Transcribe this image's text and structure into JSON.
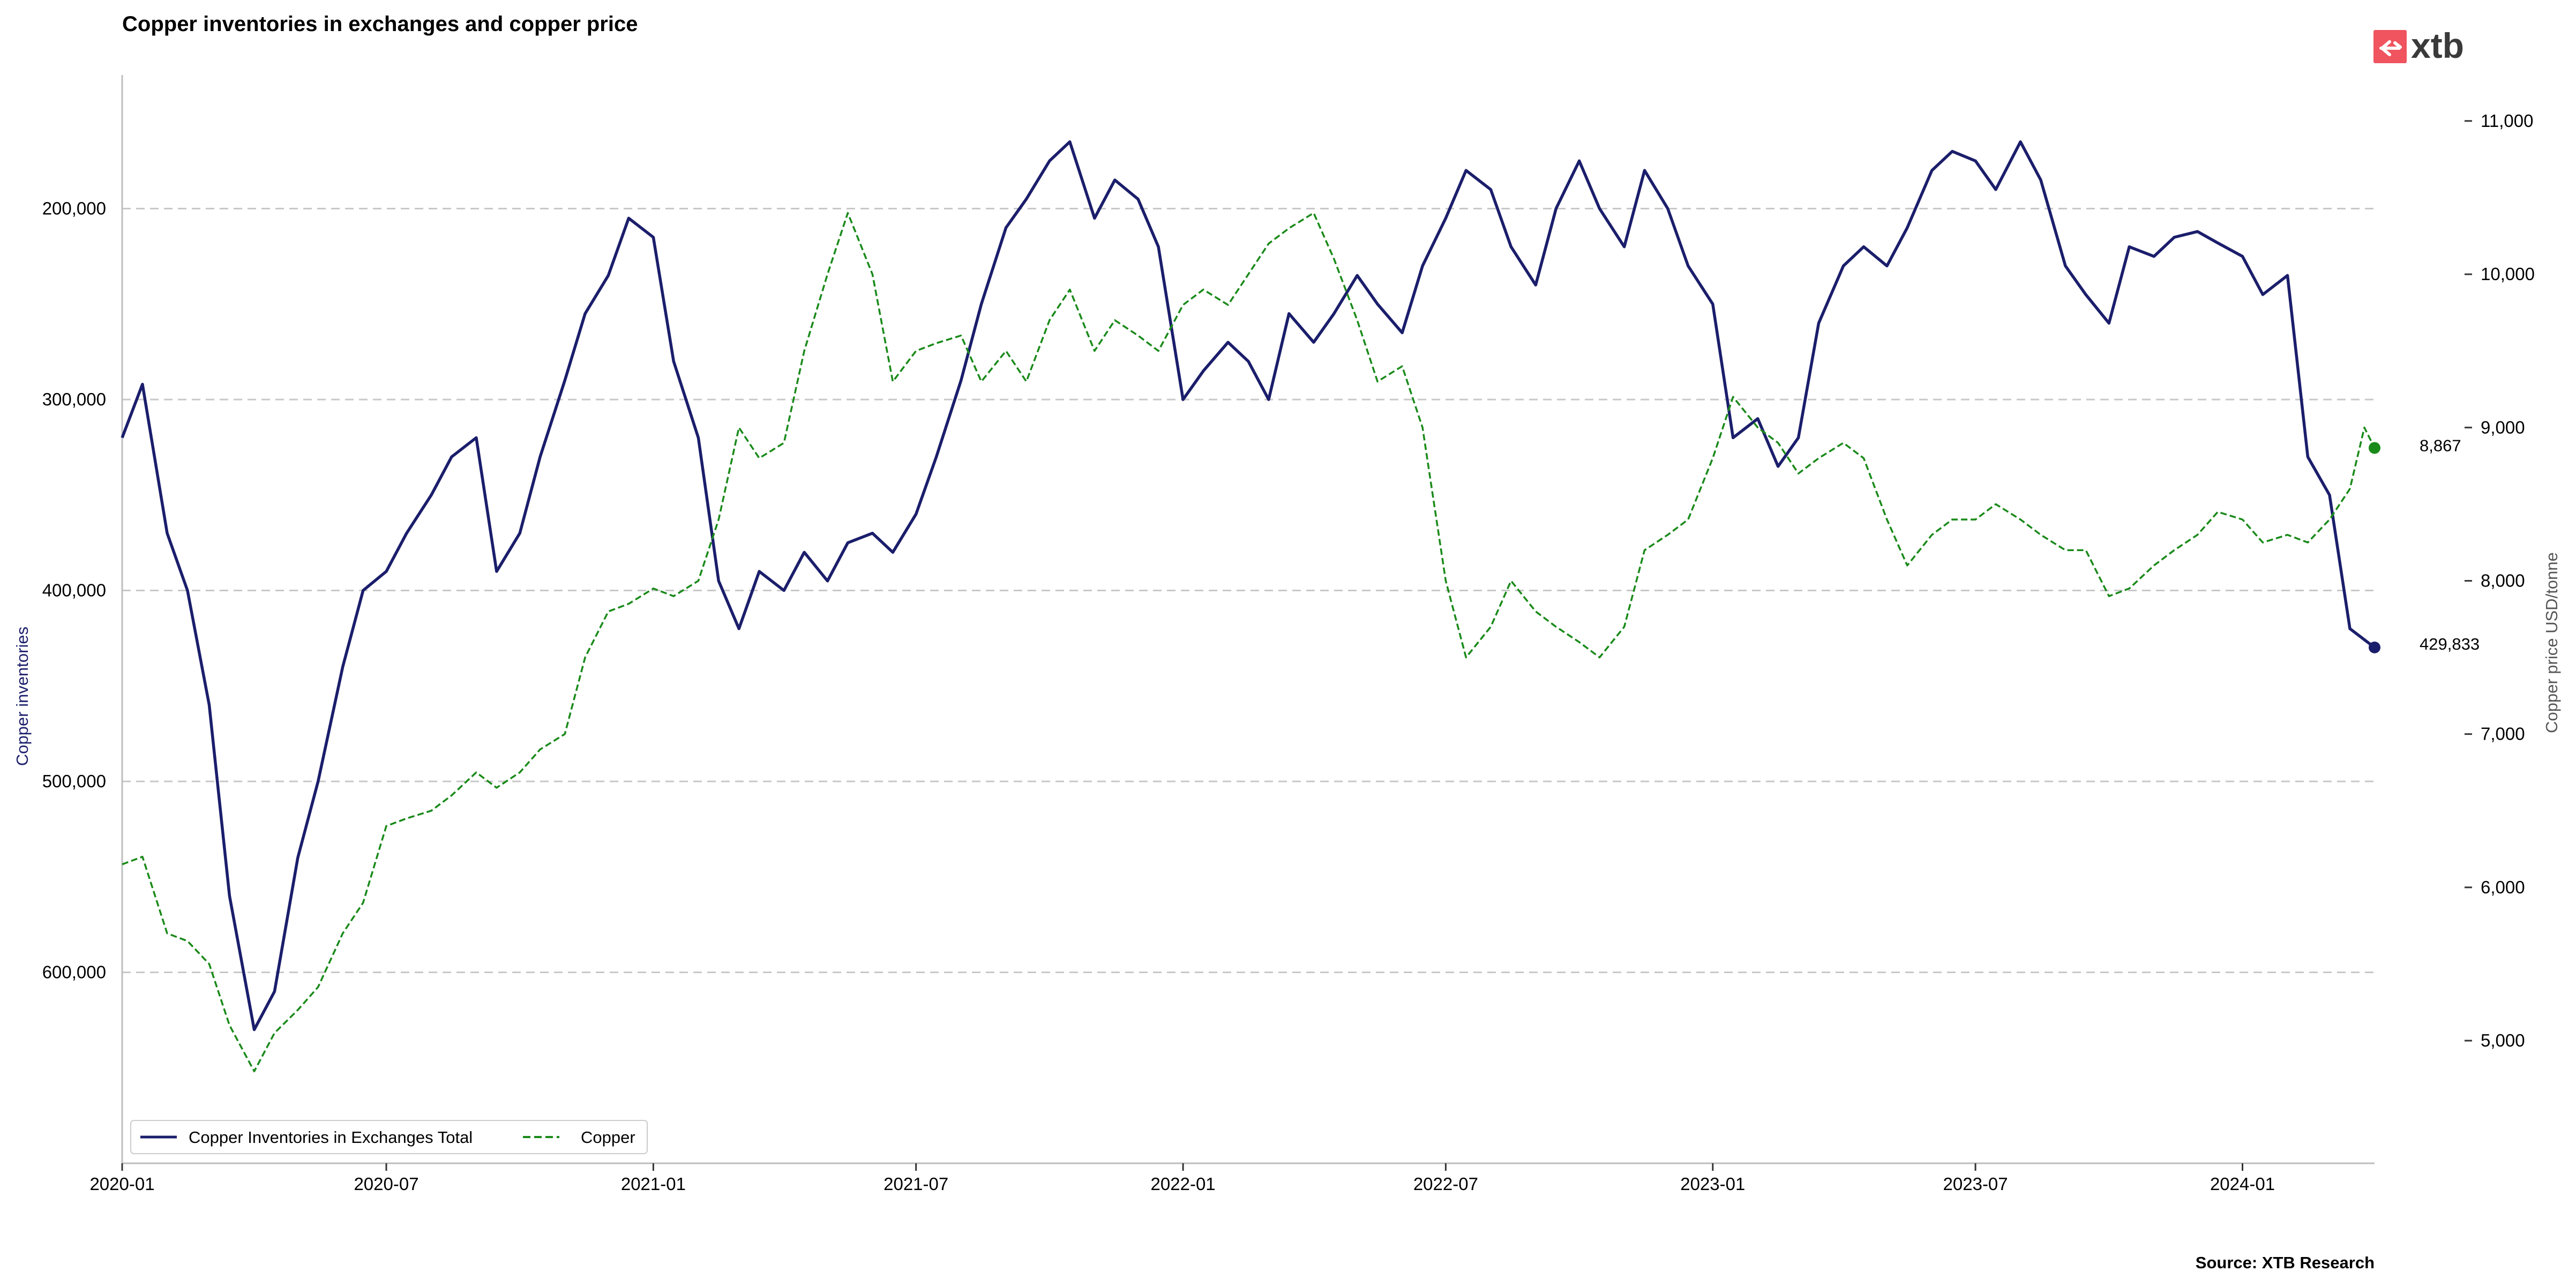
{
  "chart_data": {
    "type": "line",
    "title": "Copper inventories in exchanges and copper price",
    "source": "Source: XTB Research",
    "logo_text": "xtb",
    "grid": "horizontal dashed",
    "legend_position": "bottom-left",
    "x_axis": {
      "range": [
        "2020-01",
        "2024-04"
      ],
      "tick_labels": [
        "2020-01",
        "2020-07",
        "2021-01",
        "2021-07",
        "2022-01",
        "2022-07",
        "2023-01",
        "2023-07",
        "2024-01"
      ]
    },
    "left_axis": {
      "label": "Copper inventories",
      "inverted": true,
      "range": [
        130000,
        700000
      ],
      "ticks": [
        200000,
        300000,
        400000,
        500000,
        600000
      ],
      "tick_labels": [
        "200,000",
        "300,000",
        "400,000",
        "500,000",
        "600,000"
      ],
      "color": "#1b1e6b"
    },
    "right_axis": {
      "label": "Copper price USD/tonne",
      "range": [
        4200,
        11300
      ],
      "ticks": [
        5000,
        6000,
        7000,
        8000,
        9000,
        10000,
        11000
      ],
      "tick_labels": [
        "5,000",
        "6,000",
        "7,000",
        "8,000",
        "9,000",
        "10,000",
        "11,000"
      ],
      "color": "#555555"
    },
    "series": [
      {
        "name": "Copper Inventories in Exchanges Total",
        "axis": "left",
        "color": "#1b1e6b",
        "style": "solid",
        "last_value_label": "429,833",
        "points": [
          [
            "2020-01-01",
            320000
          ],
          [
            "2020-01-15",
            292000
          ],
          [
            "2020-02-01",
            370000
          ],
          [
            "2020-02-15",
            400000
          ],
          [
            "2020-03-01",
            460000
          ],
          [
            "2020-03-15",
            560000
          ],
          [
            "2020-04-01",
            630000
          ],
          [
            "2020-04-15",
            610000
          ],
          [
            "2020-05-01",
            540000
          ],
          [
            "2020-05-15",
            500000
          ],
          [
            "2020-06-01",
            440000
          ],
          [
            "2020-06-15",
            400000
          ],
          [
            "2020-07-01",
            390000
          ],
          [
            "2020-07-15",
            370000
          ],
          [
            "2020-08-01",
            350000
          ],
          [
            "2020-08-15",
            330000
          ],
          [
            "2020-09-01",
            320000
          ],
          [
            "2020-09-15",
            390000
          ],
          [
            "2020-10-01",
            370000
          ],
          [
            "2020-10-15",
            330000
          ],
          [
            "2020-11-01",
            290000
          ],
          [
            "2020-11-15",
            255000
          ],
          [
            "2020-12-01",
            235000
          ],
          [
            "2020-12-15",
            205000
          ],
          [
            "2021-01-01",
            215000
          ],
          [
            "2021-01-15",
            280000
          ],
          [
            "2021-02-01",
            320000
          ],
          [
            "2021-02-15",
            395000
          ],
          [
            "2021-03-01",
            420000
          ],
          [
            "2021-03-15",
            390000
          ],
          [
            "2021-04-01",
            400000
          ],
          [
            "2021-04-15",
            380000
          ],
          [
            "2021-05-01",
            395000
          ],
          [
            "2021-05-15",
            375000
          ],
          [
            "2021-06-01",
            370000
          ],
          [
            "2021-06-15",
            380000
          ],
          [
            "2021-07-01",
            360000
          ],
          [
            "2021-07-15",
            330000
          ],
          [
            "2021-08-01",
            290000
          ],
          [
            "2021-08-15",
            250000
          ],
          [
            "2021-09-01",
            210000
          ],
          [
            "2021-09-15",
            195000
          ],
          [
            "2021-10-01",
            175000
          ],
          [
            "2021-10-15",
            165000
          ],
          [
            "2021-11-01",
            205000
          ],
          [
            "2021-11-15",
            185000
          ],
          [
            "2021-12-01",
            195000
          ],
          [
            "2021-12-15",
            220000
          ],
          [
            "2022-01-01",
            300000
          ],
          [
            "2022-01-15",
            285000
          ],
          [
            "2022-02-01",
            270000
          ],
          [
            "2022-02-15",
            280000
          ],
          [
            "2022-03-01",
            300000
          ],
          [
            "2022-03-15",
            255000
          ],
          [
            "2022-04-01",
            270000
          ],
          [
            "2022-04-15",
            255000
          ],
          [
            "2022-05-01",
            235000
          ],
          [
            "2022-05-15",
            250000
          ],
          [
            "2022-06-01",
            265000
          ],
          [
            "2022-06-15",
            230000
          ],
          [
            "2022-07-01",
            205000
          ],
          [
            "2022-07-15",
            180000
          ],
          [
            "2022-08-01",
            190000
          ],
          [
            "2022-08-15",
            220000
          ],
          [
            "2022-09-01",
            240000
          ],
          [
            "2022-09-15",
            200000
          ],
          [
            "2022-10-01",
            175000
          ],
          [
            "2022-10-15",
            200000
          ],
          [
            "2022-11-01",
            220000
          ],
          [
            "2022-11-15",
            180000
          ],
          [
            "2022-12-01",
            200000
          ],
          [
            "2022-12-15",
            230000
          ],
          [
            "2023-01-01",
            250000
          ],
          [
            "2023-01-15",
            320000
          ],
          [
            "2023-02-01",
            310000
          ],
          [
            "2023-02-15",
            335000
          ],
          [
            "2023-03-01",
            320000
          ],
          [
            "2023-03-15",
            260000
          ],
          [
            "2023-04-01",
            230000
          ],
          [
            "2023-04-15",
            220000
          ],
          [
            "2023-05-01",
            230000
          ],
          [
            "2023-05-15",
            210000
          ],
          [
            "2023-06-01",
            180000
          ],
          [
            "2023-06-15",
            170000
          ],
          [
            "2023-07-01",
            175000
          ],
          [
            "2023-07-15",
            190000
          ],
          [
            "2023-08-01",
            165000
          ],
          [
            "2023-08-15",
            185000
          ],
          [
            "2023-09-01",
            230000
          ],
          [
            "2023-09-15",
            245000
          ],
          [
            "2023-10-01",
            260000
          ],
          [
            "2023-10-15",
            220000
          ],
          [
            "2023-11-01",
            225000
          ],
          [
            "2023-11-15",
            215000
          ],
          [
            "2023-12-01",
            212000
          ],
          [
            "2023-12-15",
            218000
          ],
          [
            "2024-01-01",
            225000
          ],
          [
            "2024-01-15",
            245000
          ],
          [
            "2024-02-01",
            235000
          ],
          [
            "2024-02-15",
            330000
          ],
          [
            "2024-03-01",
            350000
          ],
          [
            "2024-03-15",
            420000
          ],
          [
            "2024-04-01",
            429833
          ]
        ]
      },
      {
        "name": "Copper",
        "axis": "right",
        "color": "#1a8a1a",
        "style": "dashed",
        "last_value_label": "8,867",
        "points": [
          [
            "2020-01-01",
            6150
          ],
          [
            "2020-01-15",
            6200
          ],
          [
            "2020-02-01",
            5700
          ],
          [
            "2020-02-15",
            5650
          ],
          [
            "2020-03-01",
            5500
          ],
          [
            "2020-03-15",
            5100
          ],
          [
            "2020-04-01",
            4800
          ],
          [
            "2020-04-15",
            5050
          ],
          [
            "2020-05-01",
            5200
          ],
          [
            "2020-05-15",
            5350
          ],
          [
            "2020-06-01",
            5700
          ],
          [
            "2020-06-15",
            5900
          ],
          [
            "2020-07-01",
            6400
          ],
          [
            "2020-07-15",
            6450
          ],
          [
            "2020-08-01",
            6500
          ],
          [
            "2020-08-15",
            6600
          ],
          [
            "2020-09-01",
            6750
          ],
          [
            "2020-09-15",
            6650
          ],
          [
            "2020-10-01",
            6750
          ],
          [
            "2020-10-15",
            6900
          ],
          [
            "2020-11-01",
            7000
          ],
          [
            "2020-11-15",
            7500
          ],
          [
            "2020-12-01",
            7800
          ],
          [
            "2020-12-15",
            7850
          ],
          [
            "2021-01-01",
            7950
          ],
          [
            "2021-01-15",
            7900
          ],
          [
            "2021-02-01",
            8000
          ],
          [
            "2021-02-15",
            8400
          ],
          [
            "2021-03-01",
            9000
          ],
          [
            "2021-03-15",
            8800
          ],
          [
            "2021-04-01",
            8900
          ],
          [
            "2021-04-15",
            9500
          ],
          [
            "2021-05-01",
            10000
          ],
          [
            "2021-05-15",
            10400
          ],
          [
            "2021-06-01",
            10000
          ],
          [
            "2021-06-15",
            9300
          ],
          [
            "2021-07-01",
            9500
          ],
          [
            "2021-07-15",
            9550
          ],
          [
            "2021-08-01",
            9600
          ],
          [
            "2021-08-15",
            9300
          ],
          [
            "2021-09-01",
            9500
          ],
          [
            "2021-09-15",
            9300
          ],
          [
            "2021-10-01",
            9700
          ],
          [
            "2021-10-15",
            9900
          ],
          [
            "2021-11-01",
            9500
          ],
          [
            "2021-11-15",
            9700
          ],
          [
            "2021-12-01",
            9600
          ],
          [
            "2021-12-15",
            9500
          ],
          [
            "2022-01-01",
            9800
          ],
          [
            "2022-01-15",
            9900
          ],
          [
            "2022-02-01",
            9800
          ],
          [
            "2022-02-15",
            10000
          ],
          [
            "2022-03-01",
            10200
          ],
          [
            "2022-03-15",
            10300
          ],
          [
            "2022-04-01",
            10400
          ],
          [
            "2022-04-15",
            10100
          ],
          [
            "2022-05-01",
            9700
          ],
          [
            "2022-05-15",
            9300
          ],
          [
            "2022-06-01",
            9400
          ],
          [
            "2022-06-15",
            9000
          ],
          [
            "2022-07-01",
            8000
          ],
          [
            "2022-07-15",
            7500
          ],
          [
            "2022-08-01",
            7700
          ],
          [
            "2022-08-15",
            8000
          ],
          [
            "2022-09-01",
            7800
          ],
          [
            "2022-09-15",
            7700
          ],
          [
            "2022-10-01",
            7600
          ],
          [
            "2022-10-15",
            7500
          ],
          [
            "2022-11-01",
            7700
          ],
          [
            "2022-11-15",
            8200
          ],
          [
            "2022-12-01",
            8300
          ],
          [
            "2022-12-15",
            8400
          ],
          [
            "2023-01-01",
            8800
          ],
          [
            "2023-01-15",
            9200
          ],
          [
            "2023-02-01",
            9000
          ],
          [
            "2023-02-15",
            8900
          ],
          [
            "2023-03-01",
            8700
          ],
          [
            "2023-03-15",
            8800
          ],
          [
            "2023-04-01",
            8900
          ],
          [
            "2023-04-15",
            8800
          ],
          [
            "2023-05-01",
            8400
          ],
          [
            "2023-05-15",
            8100
          ],
          [
            "2023-06-01",
            8300
          ],
          [
            "2023-06-15",
            8400
          ],
          [
            "2023-07-01",
            8400
          ],
          [
            "2023-07-15",
            8500
          ],
          [
            "2023-08-01",
            8400
          ],
          [
            "2023-08-15",
            8300
          ],
          [
            "2023-09-01",
            8200
          ],
          [
            "2023-09-15",
            8200
          ],
          [
            "2023-10-01",
            7900
          ],
          [
            "2023-10-15",
            7950
          ],
          [
            "2023-11-01",
            8100
          ],
          [
            "2023-11-15",
            8200
          ],
          [
            "2023-12-01",
            8300
          ],
          [
            "2023-12-15",
            8450
          ],
          [
            "2024-01-01",
            8400
          ],
          [
            "2024-01-15",
            8250
          ],
          [
            "2024-02-01",
            8300
          ],
          [
            "2024-02-15",
            8250
          ],
          [
            "2024-03-01",
            8400
          ],
          [
            "2024-03-15",
            8600
          ],
          [
            "2024-03-25",
            9000
          ],
          [
            "2024-04-01",
            8867
          ]
        ]
      }
    ]
  }
}
